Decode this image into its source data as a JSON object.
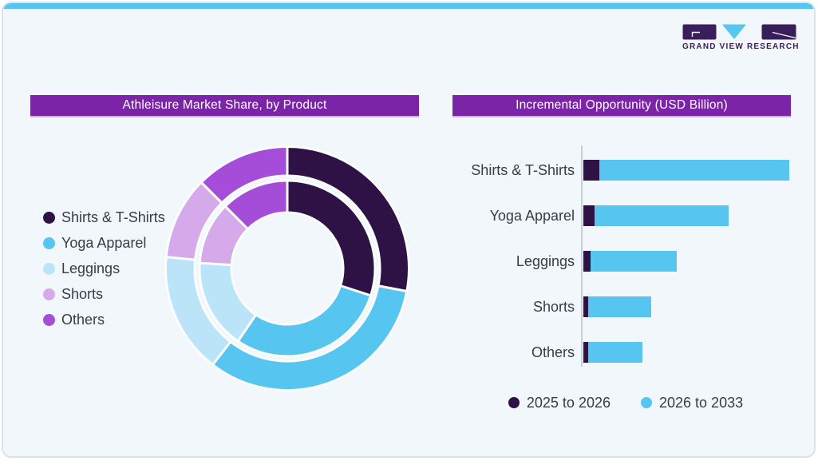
{
  "brand": {
    "logo_text": "GRAND VIEW RESEARCH"
  },
  "theme": {
    "page_background": "#FFFFFF",
    "card_background": "#F1F7FA",
    "card_border": "#D9E4EC",
    "top_strip": "#56C5F0",
    "title_bar_background": "#7B24A8",
    "title_text_color": "#FFFFFF",
    "text_color": "#3A3A4A",
    "axis_color": "#C9CFD7",
    "slice_border": "#FBFDFE",
    "brand_dark": "#3A1E5B",
    "brand_blue": "#56C5F0"
  },
  "donut": {
    "title": "Athleisure Market Share, by Product",
    "legend": [
      {
        "label": "Shirts & T-Shirts",
        "color": "#2E1245"
      },
      {
        "label": "Yoga Apparel",
        "color": "#56C5F0"
      },
      {
        "label": "Leggings",
        "color": "#BCE4F8"
      },
      {
        "label": "Shorts",
        "color": "#D5A9EA"
      },
      {
        "label": "Others",
        "color": "#A54CD9"
      }
    ]
  },
  "bars": {
    "title": "Incremental Opportunity (USD Billion)",
    "legend": [
      {
        "label": "2025 to 2026",
        "color": "#2E1245"
      },
      {
        "label": "2026 to 2033",
        "color": "#56C5F0"
      }
    ]
  },
  "chart_data": [
    {
      "type": "pie",
      "variant": "two-ring-donut",
      "title": "Athleisure Market Share, by Product",
      "categories": [
        "Shirts & T-Shirts",
        "Yoga Apparel",
        "Leggings",
        "Shorts",
        "Others"
      ],
      "colors": [
        "#2E1245",
        "#56C5F0",
        "#BCE4F8",
        "#D5A9EA",
        "#A54CD9"
      ],
      "series": [
        {
          "name": "inner-ring",
          "values": [
            30.0,
            29.5,
            16.5,
            11.5,
            12.5
          ]
        },
        {
          "name": "outer-ring",
          "values": [
            28.0,
            32.5,
            16.0,
            11.0,
            12.5
          ]
        }
      ],
      "unit": "% share (estimated from arc angles; slices are unlabeled)",
      "start_angle_deg": 0,
      "direction": "clockwise",
      "legend_position": "left"
    },
    {
      "type": "bar",
      "orientation": "horizontal",
      "stacked": true,
      "title": "Incremental Opportunity (USD Billion)",
      "categories": [
        "Shirts & T-Shirts",
        "Yoga Apparel",
        "Leggings",
        "Shorts",
        "Others"
      ],
      "series": [
        {
          "name": "2025 to 2026",
          "color": "#2E1245",
          "values": [
            7.8,
            5.4,
            3.5,
            2.3,
            2.3
          ]
        },
        {
          "name": "2026 to 2033",
          "color": "#56C5F0",
          "values": [
            92.2,
            65.1,
            41.8,
            30.7,
            26.4
          ]
        }
      ],
      "unit": "relative length (value axis unlabeled; largest stacked bar = 100)",
      "grid": false,
      "legend_position": "bottom"
    }
  ]
}
